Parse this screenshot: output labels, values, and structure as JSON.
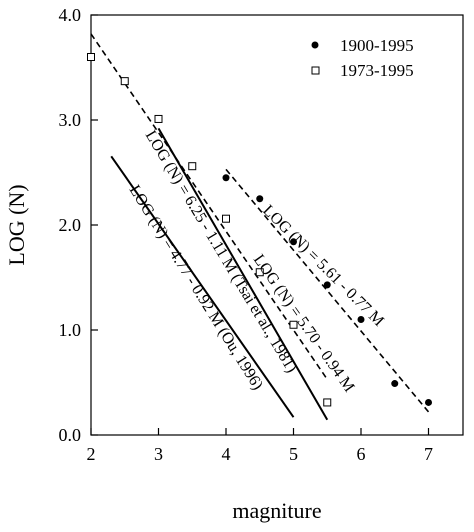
{
  "chart_data": {
    "type": "scatter",
    "xlabel": "magniture",
    "ylabel": "LOG (N)",
    "xlim": [
      2,
      7.5
    ],
    "ylim": [
      0,
      4
    ],
    "x_ticks": [
      2,
      3,
      4,
      5,
      6,
      7
    ],
    "x_tick_labels": [
      "2",
      "3",
      "4",
      "5",
      "6",
      "7"
    ],
    "y_ticks": [
      0,
      1,
      2,
      3,
      4
    ],
    "y_tick_labels": [
      "0.0",
      "1.0",
      "2.0",
      "3.0",
      "4.0"
    ],
    "grid": false,
    "legend_position": "top-right",
    "series": [
      {
        "name": "1900-1995",
        "marker": "filled-circle",
        "x": [
          4.0,
          4.5,
          5.0,
          5.5,
          6.0,
          6.5,
          7.0
        ],
        "y": [
          2.45,
          2.25,
          1.84,
          1.43,
          1.1,
          0.49,
          0.31
        ]
      },
      {
        "name": "1973-1995",
        "marker": "open-square",
        "x": [
          2.0,
          2.5,
          3.0,
          3.5,
          4.0,
          4.5,
          5.0,
          5.5
        ],
        "y": [
          3.6,
          3.37,
          3.01,
          2.56,
          2.06,
          1.55,
          1.05,
          0.31
        ]
      }
    ],
    "fit_lines": [
      {
        "label": "LOG (N) = 5.61 - 0.77 M",
        "style": "dashed",
        "x_range": [
          4.0,
          7.0
        ],
        "intercept": 5.61,
        "slope": -0.77
      },
      {
        "label": "LOG (N) = 5.70 - 0.94 M",
        "style": "dashed",
        "x_range": [
          2.0,
          5.5
        ],
        "intercept": 5.7,
        "slope": -0.94
      },
      {
        "label": "LOG (N) = 6.25 - 1.11 M (Tsai et al., 1981)",
        "style": "solid",
        "x_range": [
          3.0,
          5.5
        ],
        "intercept": 6.25,
        "slope": -1.11
      },
      {
        "label": "LOG (N) = 4.77 - 0.92 M (Ou, 1996)",
        "style": "solid",
        "x_range": [
          2.3,
          5.0
        ],
        "intercept": 4.77,
        "slope": -0.92
      }
    ]
  }
}
